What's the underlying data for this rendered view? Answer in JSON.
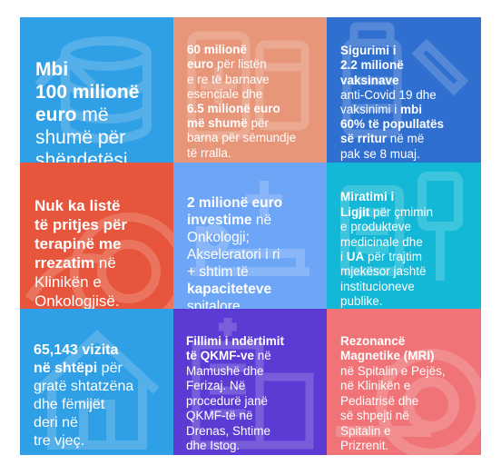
{
  "tiles": [
    {
      "id": "health-budget",
      "parts": [
        {
          "text": "Mbi\n100 milionë\neuro",
          "bold": true
        },
        {
          "text": " më\nshumë për\nshëndetësi.",
          "bold": false
        }
      ],
      "icon": "coins-stack-icon"
    },
    {
      "id": "essential-drugs",
      "parts": [
        {
          "text": "60 milionë\neuro",
          "bold": true
        },
        {
          "text": " për listën\ne re të barnave\nesenciale dhe\n",
          "bold": false
        },
        {
          "text": "6.5 milionë euro\nmë shumë",
          "bold": true
        },
        {
          "text": " për\nbarna për sëmundje\ntë rralla.",
          "bold": false
        }
      ],
      "icon": "medicine-box-icon"
    },
    {
      "id": "vaccines",
      "parts": [
        {
          "text": "Sigurimi i\n2.2 milionë\nvaksinave",
          "bold": true
        },
        {
          "text": "\nanti-Covid 19 dhe\nvaksinimi i ",
          "bold": false
        },
        {
          "text": "mbi\n60% të popullatës\nsë rritur",
          "bold": true
        },
        {
          "text": " në më\npak se 8 muaj.",
          "bold": false
        }
      ],
      "icon": "vaccine-vial-icon"
    },
    {
      "id": "radiotherapy",
      "parts": [
        {
          "text": "Nuk ka listë\ntë pritjes për\nterapinë me\nrrezatim",
          "bold": true
        },
        {
          "text": " në\nKlinikën e\nOnkologjisë.",
          "bold": false
        }
      ],
      "icon": "radiation-icon"
    },
    {
      "id": "oncology",
      "parts": [
        {
          "text": "2 milionë euro\ninvestime",
          "bold": true
        },
        {
          "text": " në\nOnkologji;\nAkseleratori i ri\n+ shtim të\n",
          "bold": false
        },
        {
          "text": "kapaciteteve",
          "bold": true
        },
        {
          "text": "\nspitalore.",
          "bold": false
        }
      ],
      "icon": "hospital-bed-icon"
    },
    {
      "id": "law-approval",
      "parts": [
        {
          "text": "Miratimi i\nLigjit",
          "bold": true
        },
        {
          "text": " për çmimin\ne produkteve\nmedicinale dhe\ni ",
          "bold": false
        },
        {
          "text": "UA",
          "bold": true
        },
        {
          "text": " për trajtim\nmjekësor jashtë\ninstitucioneve\npublike.",
          "bold": false
        }
      ],
      "icon": "gavel-icon"
    },
    {
      "id": "home-visits",
      "parts": [
        {
          "text": "65,143 vizita\nnë shtëpi",
          "bold": true
        },
        {
          "text": " për\ngratë shtatzëna\ndhe fëmijët\nderi në\ntre vjeç.",
          "bold": false
        }
      ],
      "icon": "house-icon"
    },
    {
      "id": "qkmf-construction",
      "parts": [
        {
          "text": "Fillimi i ndërtimit\ntë QKMF-ve",
          "bold": true
        },
        {
          "text": " në\nMamushë dhe\nFerizaj. Në\nprocedurë janë\nQKMF-të në\nDrenas, Shtime\ndhe Istog.",
          "bold": false
        }
      ],
      "icon": "building-icon"
    },
    {
      "id": "mri",
      "parts": [
        {
          "text": "Rezonancë\nMagnetike (MRI)",
          "bold": true
        },
        {
          "text": "\nnë Spitalin e Pejës,\nnë Klinikën e\nPediatrisë dhe\nsë shpejti në\nSpitalin e\nPrizrenit.",
          "bold": false
        }
      ],
      "icon": "mri-scanner-icon"
    }
  ]
}
